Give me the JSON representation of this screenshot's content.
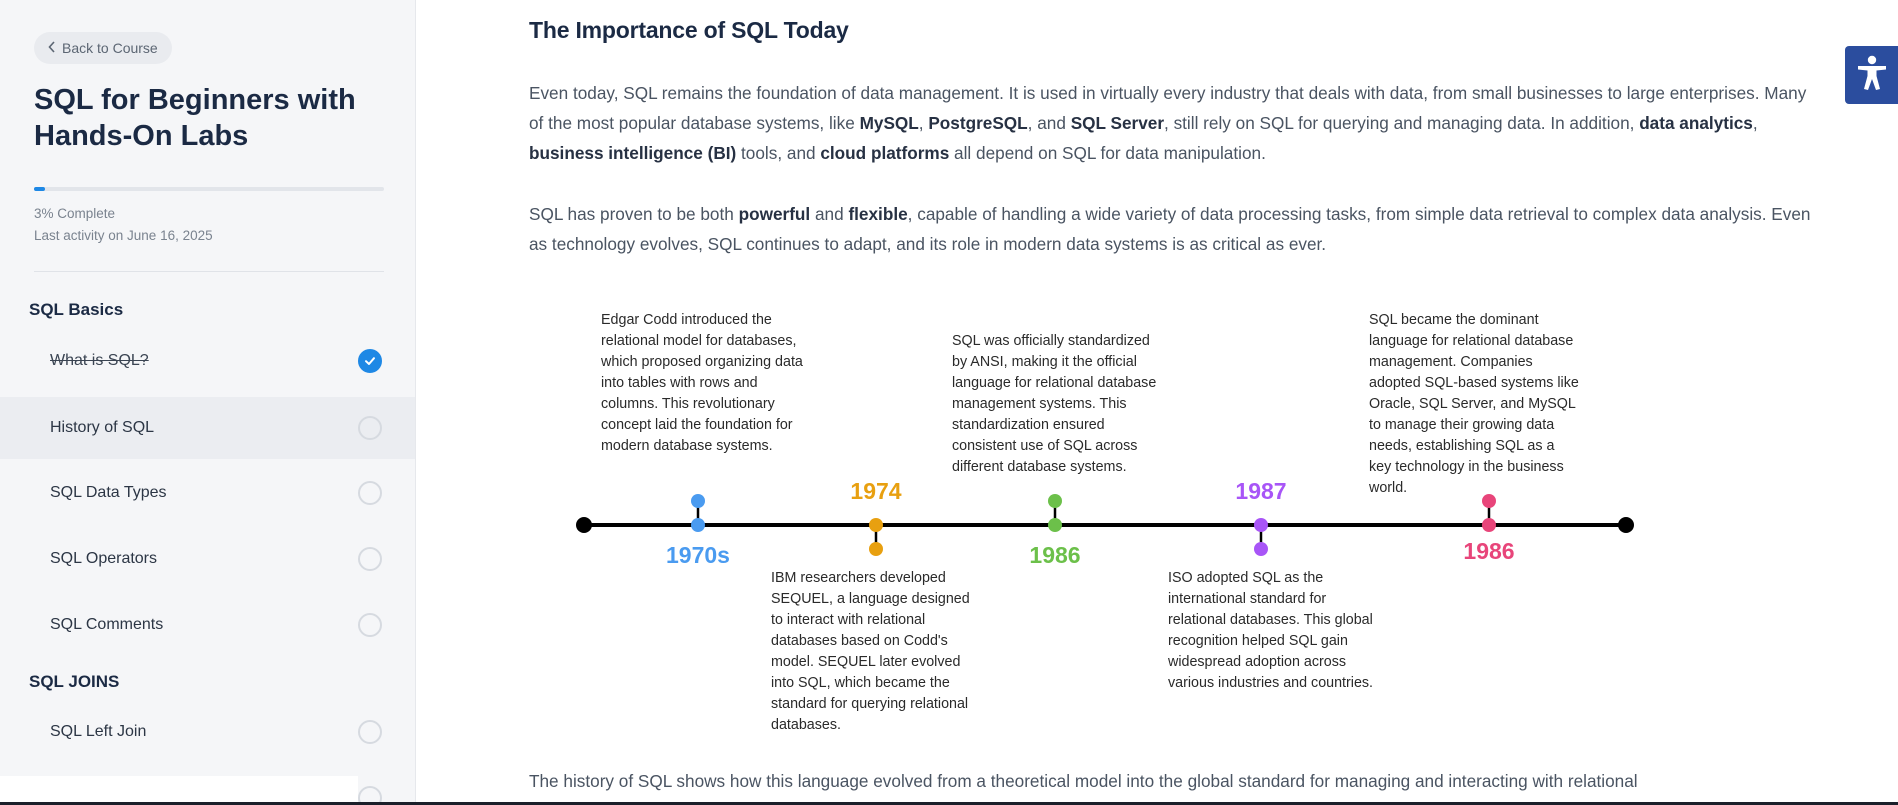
{
  "sidebar": {
    "back_label": "Back to Course",
    "course_title": "SQL for Beginners with Hands-On Labs",
    "progress_percent": 3,
    "progress_text": "3% Complete",
    "last_activity": "Last activity on June 16, 2025",
    "sections": [
      {
        "title": "SQL Basics",
        "lessons": [
          {
            "label": "What is SQL?",
            "completed": true,
            "active": false
          },
          {
            "label": "History of SQL",
            "completed": false,
            "active": true
          },
          {
            "label": "SQL Data Types",
            "completed": false,
            "active": false
          },
          {
            "label": "SQL Operators",
            "completed": false,
            "active": false
          },
          {
            "label": "SQL Comments",
            "completed": false,
            "active": false
          }
        ]
      },
      {
        "title": "SQL JOINS",
        "lessons": [
          {
            "label": "SQL Left Join",
            "completed": false,
            "active": false
          }
        ]
      }
    ],
    "accent_color": "#1e88e5"
  },
  "main": {
    "heading": "The Importance of SQL Today",
    "para1": [
      {
        "t": "Even today, SQL remains the foundation of data management. It is used in virtually every industry that deals with data, from small businesses to large enterprises. Many of the most popular database systems, like ",
        "b": false
      },
      {
        "t": "MySQL",
        "b": true
      },
      {
        "t": ", ",
        "b": false
      },
      {
        "t": "PostgreSQL",
        "b": true
      },
      {
        "t": ", and ",
        "b": false
      },
      {
        "t": "SQL Server",
        "b": true
      },
      {
        "t": ", still rely on SQL for querying and managing data. In addition, ",
        "b": false
      },
      {
        "t": "data analytics",
        "b": true
      },
      {
        "t": ", ",
        "b": false
      },
      {
        "t": "business intelligence (BI)",
        "b": true
      },
      {
        "t": " tools, and ",
        "b": false
      },
      {
        "t": "cloud platforms",
        "b": true
      },
      {
        "t": " all depend on SQL for data manipulation.",
        "b": false
      }
    ],
    "para2": [
      {
        "t": "SQL has proven to be both ",
        "b": false
      },
      {
        "t": "powerful",
        "b": true
      },
      {
        "t": " and ",
        "b": false
      },
      {
        "t": "flexible",
        "b": true
      },
      {
        "t": ", capable of handling a wide variety of data processing tasks, from simple data retrieval to complex data analysis. Even as technology evolves, SQL continues to adapt, and its role in modern data systems is as critical as ever.",
        "b": false
      }
    ],
    "para3": "The history of SQL shows how this language evolved from a theoretical model into the global standard for managing and interacting with relational",
    "timeline": {
      "events": [
        {
          "year": "1970s",
          "color": "#4a9bf0",
          "year_pos": "below",
          "text": "Edgar Codd introduced the relational model for databases, which proposed organizing data into tables with rows and columns. This revolutionary concept laid the foundation for modern database systems."
        },
        {
          "year": "1974",
          "color": "#e8a010",
          "year_pos": "above",
          "text": "IBM researchers developed SEQUEL, a language designed to interact with relational databases based on Codd's model. SEQUEL later evolved into SQL, which became the standard for querying relational databases."
        },
        {
          "year": "1986",
          "color": "#6cc04a",
          "year_pos": "below",
          "text": "SQL was officially standardized by ANSI, making it the official language for relational database management systems. This standardization ensured consistent use of SQL across different database systems."
        },
        {
          "year": "1987",
          "color": "#a855f7",
          "year_pos": "above",
          "text": "ISO adopted SQL as the international standard for relational databases. This global recognition helped SQL gain widespread adoption across various industries and countries."
        },
        {
          "year": "1986",
          "color": "#e8457a",
          "year_pos": "below",
          "text": "SQL became the dominant language for relational database management. Companies adopted SQL-based systems like Oracle, SQL Server, and MySQL to manage their growing data needs, establishing SQL as a key technology in the business world."
        }
      ]
    }
  },
  "accessibility": {
    "icon": "accessibility-icon"
  }
}
